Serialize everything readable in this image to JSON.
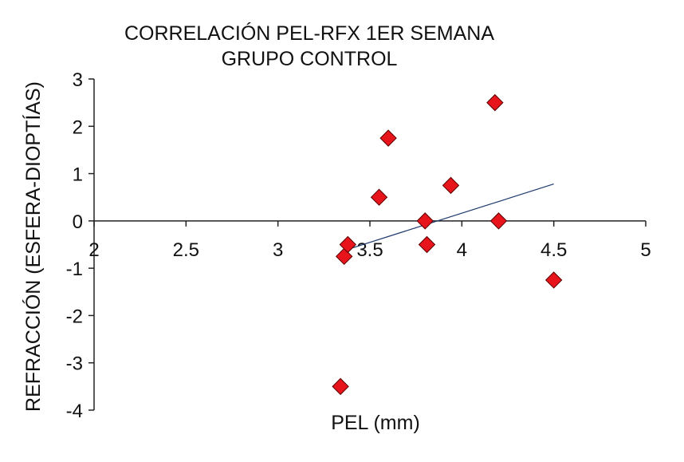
{
  "chart_data": {
    "type": "scatter",
    "title": "CORRELACIÓN PEL-RFX 1ER SEMANA",
    "subtitle": "GRUPO CONTROL",
    "xlabel": "PEL (mm)",
    "ylabel": "REFRACCIÓN (ESFERA-DIOPTÍAS)",
    "xlim": [
      2,
      5
    ],
    "ylim": [
      -4,
      3
    ],
    "x_ticks": [
      "2",
      "2.5",
      "3",
      "3.5",
      "4",
      "4.5",
      "5"
    ],
    "y_ticks": [
      "3",
      "2",
      "1",
      "0",
      "-1",
      "-2",
      "-3",
      "-4"
    ],
    "grid": false,
    "legend": "none",
    "marker": "diamond",
    "marker_color": "#e8141b",
    "trendline_color": "#1f3a6e",
    "points": [
      {
        "x": 3.34,
        "y": -3.5
      },
      {
        "x": 3.36,
        "y": -0.75
      },
      {
        "x": 3.38,
        "y": -0.5
      },
      {
        "x": 3.55,
        "y": 0.5
      },
      {
        "x": 3.6,
        "y": 1.75
      },
      {
        "x": 3.8,
        "y": 0.0
      },
      {
        "x": 3.81,
        "y": -0.5
      },
      {
        "x": 3.94,
        "y": 0.75
      },
      {
        "x": 4.18,
        "y": 2.5
      },
      {
        "x": 4.2,
        "y": 0.0
      },
      {
        "x": 4.5,
        "y": -1.25
      }
    ],
    "trendline": {
      "x": [
        3.34,
        4.5
      ],
      "y": [
        -0.65,
        0.78
      ]
    }
  }
}
